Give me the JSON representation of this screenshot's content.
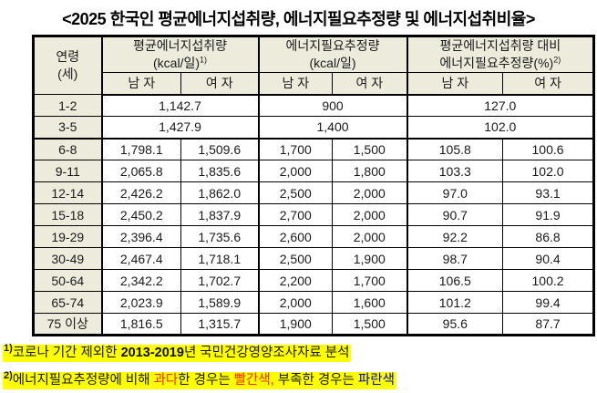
{
  "title": "<2025 한국인 평균에너지섭취량, 에너지필요추정량 및 에너지섭취비율>",
  "table": {
    "age_header": {
      "line1": "연령",
      "line2": "(세)"
    },
    "groups": [
      {
        "line1": "평균에너지섭취량",
        "line2": "(kcal/일)",
        "sup": "1)"
      },
      {
        "line1": "에너지필요추정량",
        "line2": "(kcal/일)",
        "sup": ""
      },
      {
        "line1": "평균에너지섭취량 대비",
        "line2": "에너지필요추정량(%)",
        "sup": "2)"
      }
    ],
    "sex_headers": {
      "male": "남 자",
      "female": "여 자"
    },
    "rows": [
      {
        "age": "1-2",
        "merged": true,
        "values": [
          "1,142.7",
          "900",
          "127.0"
        ],
        "colors": [
          null,
          null,
          "red"
        ]
      },
      {
        "age": "3-5",
        "merged": true,
        "values": [
          "1,427.9",
          "1,400",
          "102.0"
        ],
        "thick_bottom": true
      },
      {
        "age": "6-8",
        "values": [
          "1,798.1",
          "1,509.6",
          "1,700",
          "1,500",
          "105.8",
          "100.6"
        ]
      },
      {
        "age": "9-11",
        "values": [
          "2,065.8",
          "1,835.6",
          "2,000",
          "1,800",
          "103.3",
          "102.0"
        ]
      },
      {
        "age": "12-14",
        "values": [
          "2,426.2",
          "1,862.0",
          "2,500",
          "2,000",
          "97.0",
          "93.1"
        ]
      },
      {
        "age": "15-18",
        "values": [
          "2,450.2",
          "1,837.9",
          "2,700",
          "2,000",
          "90.7",
          "91.9"
        ]
      },
      {
        "age": "19-29",
        "values": [
          "2,396.4",
          "1,735.6",
          "2,600",
          "2,000",
          "92.2",
          "86.8"
        ],
        "colors": [
          null,
          null,
          null,
          null,
          null,
          "blue"
        ]
      },
      {
        "age": "30-49",
        "values": [
          "2,467.4",
          "1,718.1",
          "2,500",
          "1,900",
          "98.7",
          "90.4"
        ]
      },
      {
        "age": "50-64",
        "values": [
          "2,342.2",
          "1,702.7",
          "2,200",
          "1,700",
          "106.5",
          "100.2"
        ]
      },
      {
        "age": "65-74",
        "values": [
          "2,023.9",
          "1,589.9",
          "2,000",
          "1,600",
          "101.2",
          "99.4"
        ]
      },
      {
        "age": "75 이상",
        "values": [
          "1,816.5",
          "1,315.7",
          "1,900",
          "1,500",
          "95.6",
          "87.7"
        ],
        "colors": [
          null,
          null,
          null,
          null,
          null,
          "blue"
        ]
      }
    ]
  },
  "footnotes": [
    {
      "marker": "1)",
      "segments": [
        {
          "text": "코로나 기간 제외한 ",
          "style": "normal"
        },
        {
          "text": "2013-2019",
          "style": "bold"
        },
        {
          "text": "년 국민건강영양조사자료 분석",
          "style": "normal"
        }
      ]
    },
    {
      "marker": "2)",
      "segments": [
        {
          "text": "에너지필요추정량에 비해 ",
          "style": "normal"
        },
        {
          "text": "과다",
          "style": "red"
        },
        {
          "text": "한 경우는 ",
          "style": "normal"
        },
        {
          "text": "빨간색,",
          "style": "red"
        },
        {
          "text": " 부족한 경우는 ",
          "style": "normal"
        },
        {
          "text": "파란색",
          "style": "blue"
        }
      ]
    }
  ],
  "colors": {
    "header_bg": "#edebdc",
    "border": "#000000",
    "table_red": "#c63434",
    "table_blue": "#2a2ac4",
    "footnote_red": "#ff2600",
    "footnote_blue": "#0000cc",
    "highlight_yellow": "#ffff00",
    "text": "#1a1a1a"
  }
}
